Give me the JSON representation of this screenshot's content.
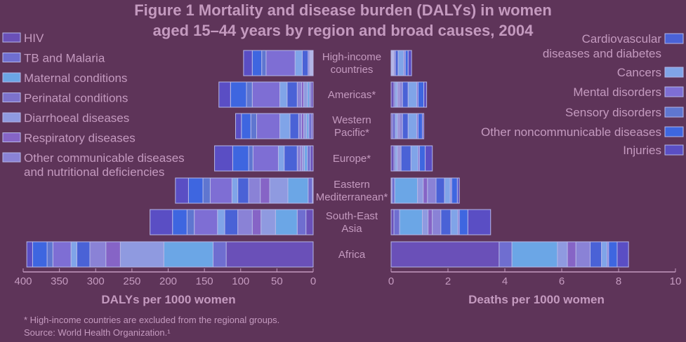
{
  "title": {
    "prefix": "Figure 1",
    "bold_line1": "Mortality and disease burden (DALYs) in women",
    "bold_line2": "aged 15–44 years by region and broad causes, 2004"
  },
  "footnote": {
    "line1": "* High-income countries are excluded from the regional groups.",
    "line2": "Source: World Health Organization.¹"
  },
  "chart_data": [
    {
      "type": "bar",
      "orientation": "horizontal-stacked",
      "xlabel": "DALYs per 1000 women",
      "xlim": [
        0,
        400
      ],
      "x_reversed": true,
      "ticks": [
        400,
        350,
        300,
        250,
        200,
        150,
        100,
        50,
        0
      ],
      "categories": [
        "High-income countries",
        "Americas*",
        "Western Pacific*",
        "Europe*",
        "Eastern Mediterranean*",
        "South-East Asia",
        "Africa"
      ],
      "series": [
        {
          "name": "HIV",
          "values": [
            1,
            3,
            2,
            4,
            1,
            10,
            120
          ]
        },
        {
          "name": "TB and Malaria",
          "values": [
            1,
            2,
            4,
            4,
            6,
            12,
            18
          ]
        },
        {
          "name": "Maternal conditions",
          "values": [
            1,
            3,
            3,
            4,
            28,
            30,
            68
          ]
        },
        {
          "name": "Perinatal conditions",
          "values": [
            0,
            0,
            0,
            0,
            0,
            0,
            0
          ]
        },
        {
          "name": "Diarrhoeal diseases",
          "values": [
            1,
            5,
            4,
            3,
            25,
            20,
            60
          ]
        },
        {
          "name": "Respiratory diseases",
          "values": [
            1,
            3,
            3,
            2,
            13,
            12,
            20
          ]
        },
        {
          "name": "Other communicable diseases and nutritional deficiencies",
          "values": [
            2,
            6,
            4,
            5,
            16,
            20,
            22
          ]
        },
        {
          "name": "Cardiovascular diseases and diabetes",
          "values": [
            8,
            14,
            12,
            18,
            15,
            18,
            18
          ]
        },
        {
          "name": "Cancers",
          "values": [
            10,
            10,
            14,
            8,
            8,
            10,
            8
          ]
        },
        {
          "name": "Mental disorders",
          "values": [
            40,
            38,
            32,
            35,
            30,
            32,
            25
          ]
        },
        {
          "name": "Sensory disorders",
          "values": [
            6,
            8,
            8,
            6,
            10,
            10,
            8
          ]
        },
        {
          "name": "Other noncommunicable diseases",
          "values": [
            13,
            22,
            13,
            22,
            20,
            20,
            20
          ]
        },
        {
          "name": "Injuries",
          "values": [
            12,
            16,
            8,
            25,
            18,
            31,
            8
          ]
        }
      ]
    },
    {
      "type": "bar",
      "orientation": "horizontal-stacked",
      "xlabel": "Deaths per 1000 women",
      "xlim": [
        0,
        10
      ],
      "ticks": [
        0,
        2,
        4,
        6,
        8,
        10
      ],
      "categories": [
        "High-income countries",
        "Americas*",
        "Western Pacific*",
        "Europe*",
        "Eastern Mediterranean*",
        "South-East Asia",
        "Africa"
      ],
      "series": [
        {
          "name": "HIV",
          "values": [
            0.02,
            0.1,
            0.05,
            0.1,
            0.03,
            0.1,
            3.8
          ]
        },
        {
          "name": "TB and Malaria",
          "values": [
            0.02,
            0.05,
            0.1,
            0.05,
            0.1,
            0.2,
            0.45
          ]
        },
        {
          "name": "Maternal conditions",
          "values": [
            0.02,
            0.05,
            0.05,
            0.05,
            0.8,
            0.8,
            1.6
          ]
        },
        {
          "name": "Perinatal conditions",
          "values": [
            0,
            0,
            0,
            0,
            0,
            0,
            0
          ]
        },
        {
          "name": "Diarrhoeal diseases",
          "values": [
            0.02,
            0.05,
            0.05,
            0.05,
            0.2,
            0.2,
            0.35
          ]
        },
        {
          "name": "Respiratory diseases",
          "values": [
            0.02,
            0.05,
            0.05,
            0.05,
            0.15,
            0.15,
            0.3
          ]
        },
        {
          "name": "Other communicable diseases and nutritional deficiencies",
          "values": [
            0.05,
            0.1,
            0.1,
            0.05,
            0.3,
            0.3,
            0.5
          ]
        },
        {
          "name": "Cardiovascular diseases and diabetes",
          "values": [
            0.1,
            0.2,
            0.2,
            0.35,
            0.3,
            0.35,
            0.4
          ]
        },
        {
          "name": "Cancers",
          "values": [
            0.2,
            0.3,
            0.3,
            0.25,
            0.2,
            0.25,
            0.2
          ]
        },
        {
          "name": "Mental disorders",
          "values": [
            0.05,
            0.05,
            0.05,
            0.05,
            0.05,
            0.05,
            0.05
          ]
        },
        {
          "name": "Sensory disorders",
          "values": [
            0,
            0,
            0,
            0,
            0,
            0,
            0
          ]
        },
        {
          "name": "Other noncommunicable diseases",
          "values": [
            0.1,
            0.2,
            0.15,
            0.2,
            0.2,
            0.3,
            0.3
          ]
        },
        {
          "name": "Injuries",
          "values": [
            0.12,
            0.1,
            0.05,
            0.25,
            0.07,
            0.8,
            0.4
          ]
        }
      ]
    }
  ],
  "legend_left": [
    {
      "series": 0,
      "lines": [
        "HIV"
      ]
    },
    {
      "series": 1,
      "lines": [
        "TB and Malaria"
      ]
    },
    {
      "series": 2,
      "lines": [
        "Maternal conditions"
      ]
    },
    {
      "series": 3,
      "lines": [
        "Perinatal conditions"
      ]
    },
    {
      "series": 4,
      "lines": [
        "Diarrhoeal diseases"
      ]
    },
    {
      "series": 5,
      "lines": [
        "Respiratory diseases"
      ]
    },
    {
      "series": 6,
      "lines": [
        "Other communicable diseases",
        "and nutritional deficiencies"
      ]
    }
  ],
  "legend_right": [
    {
      "series": 7,
      "lines": [
        "Cardiovascular",
        "diseases and diabetes"
      ]
    },
    {
      "series": 8,
      "lines": [
        "Cancers"
      ]
    },
    {
      "series": 9,
      "lines": [
        "Mental disorders"
      ]
    },
    {
      "series": 10,
      "lines": [
        "Sensory disorders"
      ]
    },
    {
      "series": 11,
      "lines": [
        "Other noncommunicable diseases"
      ]
    },
    {
      "series": 12,
      "lines": [
        "Injuries"
      ]
    }
  ],
  "category_label_lines": [
    [
      "High-income",
      "countries"
    ],
    [
      "Americas*"
    ],
    [
      "Western",
      "Pacific*"
    ],
    [
      "Europe*"
    ],
    [
      "Eastern",
      "Mediterranean*"
    ],
    [
      "South-East",
      "Asia"
    ],
    [
      "Africa"
    ]
  ],
  "colors": {
    "series": [
      "#6a50b8",
      "#6f6ed0",
      "#6ba6e6",
      "#7d72cc",
      "#8f9ae0",
      "#8664c6",
      "#8a82d6",
      "#4a62d6",
      "#80a4e8",
      "#7e6ed4",
      "#5f76d0",
      "#3e66e0",
      "#5a4ec4"
    ],
    "bar_stroke": "#b4b6e6",
    "axis": "#c49abf"
  }
}
